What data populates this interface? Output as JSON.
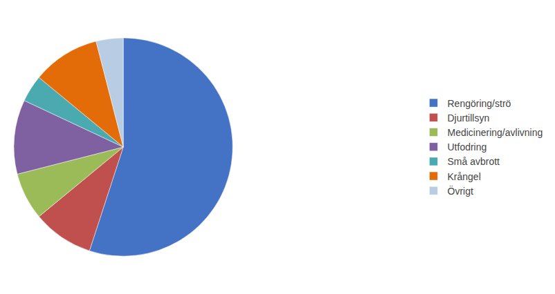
{
  "chart_data": {
    "type": "pie",
    "categories": [
      "Rengöring/strö",
      "Djurtillsyn",
      "Medicinering/avlivning",
      "Utfodring",
      "Små avbrott",
      "Krångel",
      "Övrigt"
    ],
    "values": [
      55,
      9,
      7,
      11,
      4,
      10,
      4
    ],
    "colors": [
      "#4472C4",
      "#C0504D",
      "#9BBB59",
      "#7F60A0",
      "#4BAAB0",
      "#E36C09",
      "#B8CCE4"
    ],
    "legend": "right"
  }
}
